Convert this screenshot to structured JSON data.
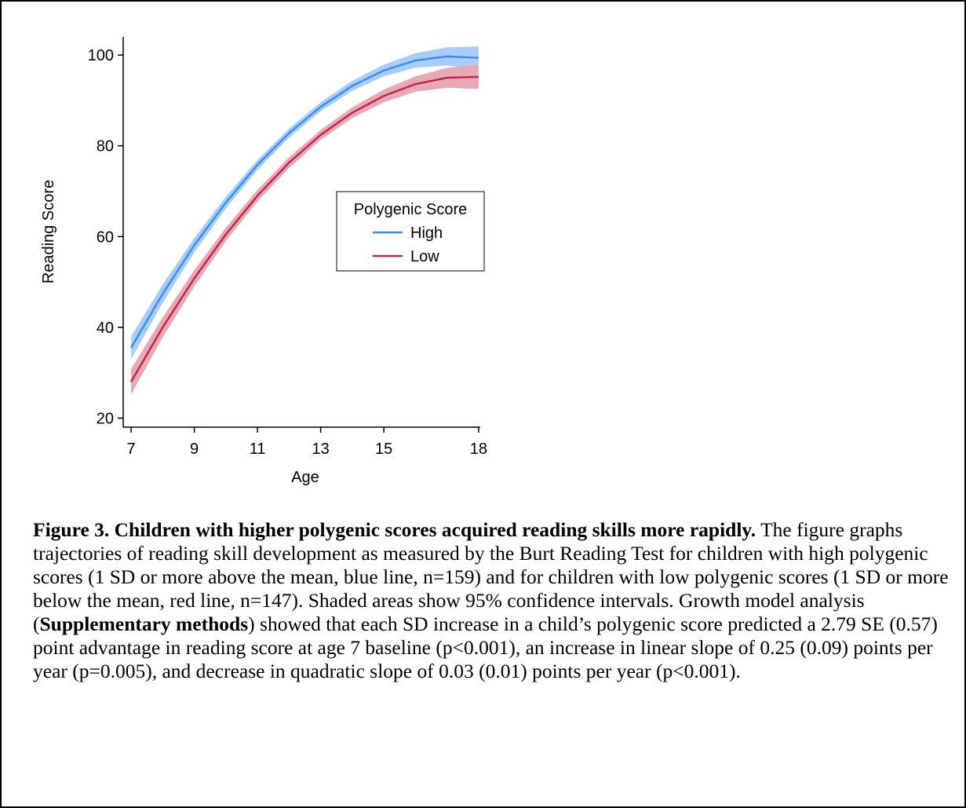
{
  "chart_data": {
    "type": "line",
    "x_label": "Age",
    "y_label": "Reading Score",
    "x": [
      7,
      8,
      9,
      10,
      11,
      12,
      13,
      14,
      15,
      16,
      17,
      18
    ],
    "series": [
      {
        "name": "High",
        "color": "#3c8df0",
        "band_color": "#a9cdfa",
        "values": [
          35.5,
          47.4,
          58.1,
          67.5,
          75.8,
          82.8,
          88.6,
          93.2,
          96.6,
          98.8,
          99.7,
          99.4
        ],
        "lower": [
          33.0,
          45.4,
          56.5,
          66.2,
          74.7,
          81.8,
          87.6,
          92.1,
          95.3,
          97.2,
          97.7,
          96.9
        ],
        "upper": [
          38.0,
          49.4,
          59.7,
          68.8,
          76.9,
          83.8,
          89.6,
          94.3,
          97.9,
          100.4,
          101.7,
          101.9
        ]
      },
      {
        "name": "Low",
        "color": "#c0284a",
        "band_color": "#e8a9b6",
        "values": [
          28.0,
          40.0,
          50.8,
          60.5,
          69.0,
          76.3,
          82.4,
          87.3,
          91.0,
          93.6,
          95.0,
          95.2
        ],
        "lower": [
          25.2,
          37.8,
          49.0,
          59.0,
          67.7,
          75.1,
          81.3,
          86.1,
          89.6,
          91.9,
          92.8,
          92.5
        ],
        "upper": [
          30.8,
          42.2,
          52.6,
          62.0,
          70.3,
          77.5,
          83.5,
          88.5,
          92.4,
          95.3,
          97.2,
          97.9
        ]
      }
    ],
    "legend_title": "Polygenic Score",
    "legend": "center",
    "xlim": [
      6.75,
      18.25
    ],
    "xticks": [
      7,
      9,
      11,
      13,
      15,
      18
    ],
    "ylim": [
      18,
      104
    ],
    "yticks": [
      20,
      40,
      60,
      80,
      100
    ],
    "grid": false
  },
  "caption": {
    "title": "Figure 3. Children with higher polygenic scores acquired reading skills more rapidly.",
    "text_1": " The figure graphs trajectories of reading skill development as measured by the Burt Reading Test for children with high polygenic scores (1 SD or more above the mean, blue line, n=159) and for children with low polygenic scores (1 SD or more below the mean, red line, n=147). Shaded areas show 95% confidence intervals. Growth model analysis (",
    "bold": "Supplementary methods",
    "text_2": ") showed that each SD increase in a child’s polygenic score predicted a 2.79 SE (0.57) point advantage in reading score at age 7 baseline (p<0.001), an increase in linear slope of 0.25 (0.09) points per year (p=0.005), and decrease in quadratic slope of 0.03 (0.01) points per year (p<0.001)."
  }
}
